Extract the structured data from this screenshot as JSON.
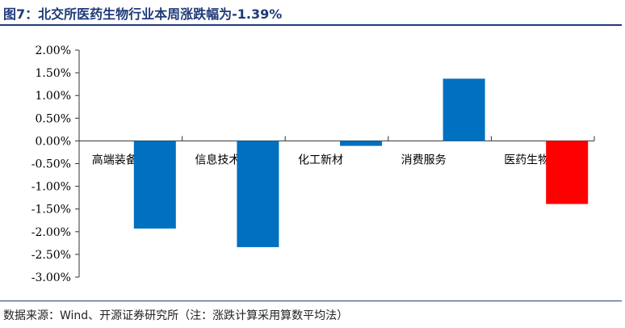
{
  "header": {
    "title": "图7：北交所医药生物行业本周涨跌幅为-1.39%"
  },
  "footer": {
    "source": "数据来源：Wind、开源证券研究所（注：涨跌计算采用算数平均法）"
  },
  "colors": {
    "title": "#1f3a78",
    "bar_default": "#0070c0",
    "bar_highlight": "#ff0000",
    "axis": "#333333"
  },
  "chart_data": {
    "type": "bar",
    "title": "",
    "xlabel": "",
    "ylabel": "",
    "categories": [
      "高端装备",
      "信息技术",
      "化工新材",
      "消费服务",
      "医药生物"
    ],
    "values": [
      -1.93,
      -2.34,
      -0.11,
      1.37,
      -1.39
    ],
    "highlight_index": 4,
    "value_format": "percent",
    "ylim": [
      -3.0,
      2.0
    ],
    "yticks": [
      2.0,
      1.5,
      1.0,
      0.5,
      0.0,
      -0.5,
      -1.0,
      -1.5,
      -2.0,
      -2.5,
      -3.0
    ],
    "ytick_labels": [
      "2.00%",
      "1.50%",
      "1.00%",
      "0.50%",
      "0.00%",
      "-0.50%",
      "-1.00%",
      "-1.50%",
      "-2.00%",
      "-2.50%",
      "-3.00%"
    ],
    "grid": false,
    "legend": "none"
  }
}
